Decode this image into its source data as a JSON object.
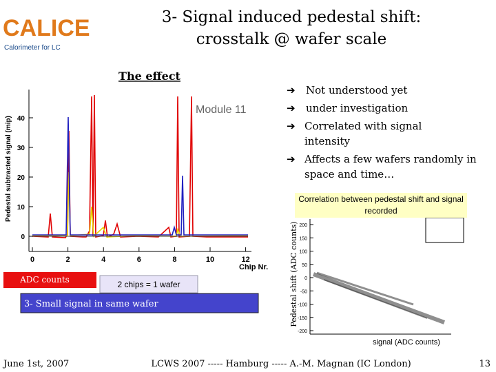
{
  "header": {
    "logo": "CALICE",
    "logo_subtitle": "Calorimeter for LC",
    "title_line1": "3- Signal induced pedestal shift:",
    "title_line2": "crosstalk @ wafer scale"
  },
  "section_heading": "The effect",
  "bullets": [
    "Not understood yet",
    "under investigation",
    "Correlated with signal intensity",
    "Affects a few wafers randomly in space and time…"
  ],
  "left_plot": {
    "y_label": "Pedestal subtracted signal (mip)",
    "x_label": "Chip Nr.",
    "legend": "Module 11",
    "yticks": [
      0,
      10,
      20,
      30,
      40
    ],
    "xticks": [
      0,
      2,
      4,
      6,
      8,
      10,
      12
    ]
  },
  "boxes": {
    "adc": "ADC counts",
    "wafer": "2 chips = 1 wafer",
    "small_signal": "3- Small signal in same wafer"
  },
  "right_plot": {
    "caption": "Correlation between pedestal shift and signal recorded",
    "y_label": "Pedestal shift (ADC counts)",
    "x_label": "signal (ADC counts)",
    "yticks": [
      200,
      150,
      100,
      50,
      0,
      -50,
      -100,
      -150,
      -200
    ]
  },
  "footer": {
    "date": "June 1st, 2007",
    "event": "LCWS 2007 ----- Hamburg ----- A.-M. Magnan (IC London)",
    "page": "13"
  }
}
